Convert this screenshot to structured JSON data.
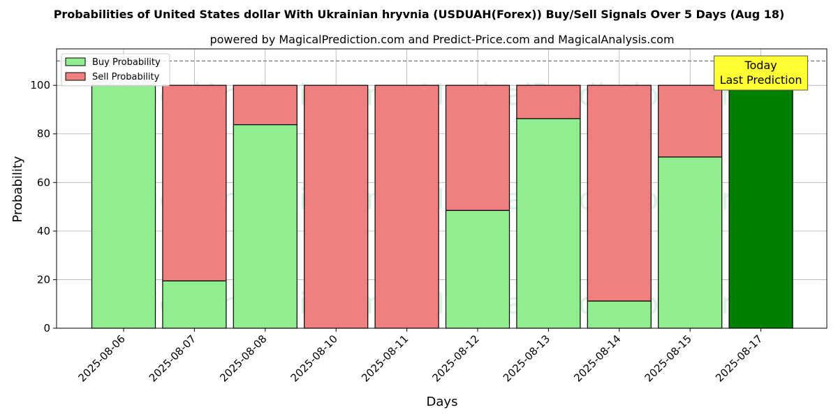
{
  "chart_data": {
    "type": "bar",
    "stacked": true,
    "title": "Probabilities of United States dollar With Ukrainian hryvnia (USDUAH(Forex)) Buy/Sell Signals Over 5 Days (Aug 18)",
    "subtitle": "powered by MagicalPrediction.com and Predict-Price.com and MagicalAnalysis.com",
    "xlabel": "Days",
    "ylabel": "Probability",
    "ylim": [
      0,
      115
    ],
    "yticks": [
      0,
      20,
      40,
      60,
      80,
      100
    ],
    "grid": true,
    "legend_position": "top-left",
    "reference_line": 110,
    "categories": [
      "2025-08-06",
      "2025-08-07",
      "2025-08-08",
      "2025-08-10",
      "2025-08-11",
      "2025-08-12",
      "2025-08-13",
      "2025-08-14",
      "2025-08-15",
      "2025-08-17"
    ],
    "series": [
      {
        "name": "Buy Probability",
        "color": "#90ee90",
        "values": [
          100,
          19.5,
          83.8,
          0,
          0,
          48.5,
          86.3,
          11.2,
          70.5,
          100
        ]
      },
      {
        "name": "Sell Probability",
        "color": "#f08080",
        "values": [
          0,
          80.5,
          16.2,
          100,
          100,
          51.5,
          13.7,
          88.8,
          29.5,
          0
        ]
      }
    ],
    "highlight": {
      "index": 9,
      "color": "#008000"
    },
    "annotation": {
      "lines": [
        "Today",
        "Last Prediction"
      ],
      "color": "#ffff33"
    },
    "watermarks": [
      "MagicalAnalysis.com",
      "MagicalPrediction.com"
    ]
  }
}
